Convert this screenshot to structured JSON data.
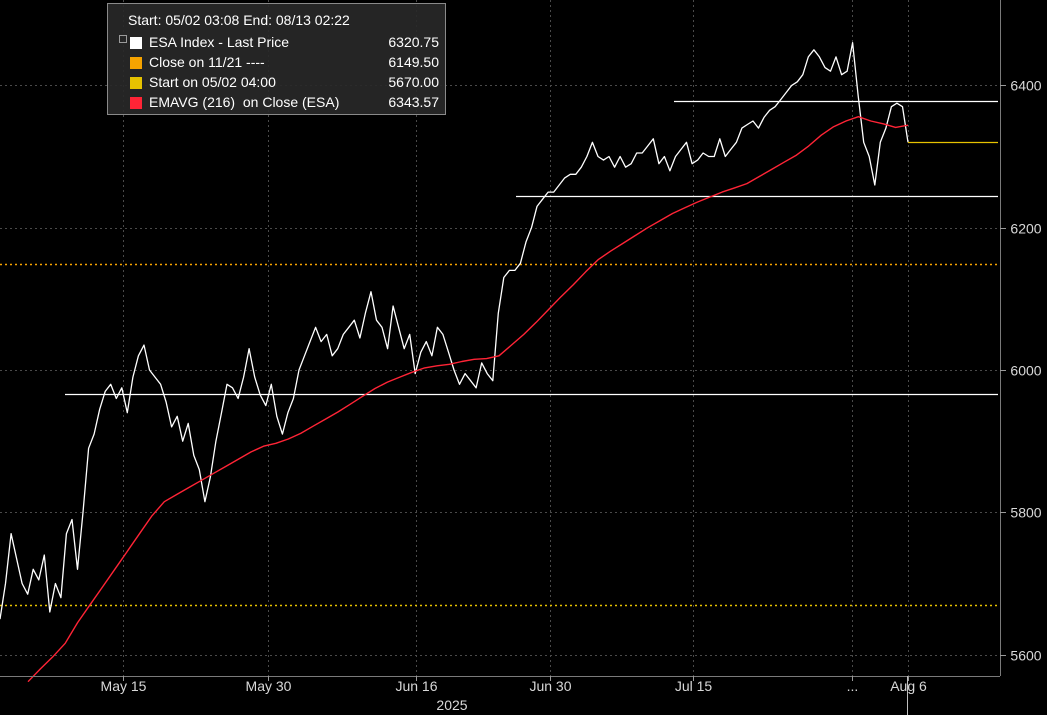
{
  "legend": {
    "header": "Start: 05/02 03:08 End: 08/13 02:22",
    "items": [
      {
        "label": "ESA Index - Last Price",
        "value": "6320.75",
        "color": "#ffffff"
      },
      {
        "label": "Close on 11/21 ----",
        "value": "6149.50",
        "color": "#f5a300"
      },
      {
        "label": "Start on 05/02 04:00",
        "value": "5670.00",
        "color": "#e6c200"
      },
      {
        "label": "EMAVG (216)  on Close (ESA)",
        "value": "6343.57",
        "color": "#ff2436"
      }
    ]
  },
  "chart_data": {
    "type": "line",
    "ylim": [
      5570,
      6520
    ],
    "yticks": [
      "5600",
      "5800",
      "6000",
      "6200",
      "6400"
    ],
    "xtick_labels": [
      "May 15",
      "May 30",
      "Jun 16",
      "Jun 30",
      "Jul 15",
      "...",
      "Aug 6"
    ],
    "xlabel": "2025",
    "grid": true,
    "legend_position": "top-left",
    "reference_lines": [
      {
        "name": "Close on 11/21",
        "value": 6149.5,
        "color": "#f5a300",
        "style": "dotted"
      },
      {
        "name": "Start on 05/02 04:00",
        "value": 5670.0,
        "color": "#e6c200",
        "style": "dotted"
      }
    ],
    "horizontal_levels": [
      5967,
      6244,
      6378
    ],
    "series": [
      {
        "name": "ESA Index - Last Price",
        "color": "#ffffff",
        "values": [
          5650,
          5700,
          5770,
          5735,
          5700,
          5685,
          5720,
          5705,
          5740,
          5660,
          5700,
          5680,
          5770,
          5790,
          5720,
          5800,
          5890,
          5910,
          5945,
          5970,
          5980,
          5960,
          5975,
          5940,
          5990,
          6020,
          6035,
          6000,
          5990,
          5980,
          5955,
          5920,
          5935,
          5900,
          5925,
          5880,
          5860,
          5815,
          5850,
          5900,
          5940,
          5980,
          5975,
          5960,
          5990,
          6030,
          5990,
          5965,
          5950,
          5980,
          5935,
          5910,
          5940,
          5960,
          6000,
          6020,
          6040,
          6060,
          6040,
          6050,
          6020,
          6030,
          6050,
          6060,
          6070,
          6045,
          6080,
          6110,
          6070,
          6060,
          6030,
          6090,
          6060,
          6030,
          6050,
          5995,
          6025,
          6040,
          6020,
          6060,
          6050,
          6025,
          6000,
          5980,
          5995,
          5985,
          5975,
          6010,
          5995,
          5985,
          6080,
          6130,
          6140,
          6140,
          6150,
          6180,
          6200,
          6230,
          6240,
          6250,
          6250,
          6260,
          6270,
          6275,
          6275,
          6285,
          6300,
          6320,
          6300,
          6295,
          6300,
          6285,
          6300,
          6285,
          6290,
          6305,
          6305,
          6315,
          6325,
          6290,
          6300,
          6280,
          6300,
          6310,
          6320,
          6290,
          6295,
          6305,
          6300,
          6300,
          6325,
          6300,
          6310,
          6320,
          6340,
          6345,
          6350,
          6340,
          6355,
          6365,
          6370,
          6380,
          6390,
          6400,
          6405,
          6415,
          6440,
          6450,
          6440,
          6425,
          6420,
          6440,
          6415,
          6420,
          6460,
          6385,
          6320,
          6300,
          6260,
          6320,
          6340,
          6370,
          6375,
          6370,
          6320
        ]
      },
      {
        "name": "EMAVG (216)  on Close (ESA)",
        "color": "#ff2436",
        "values": [
          5562,
          5580,
          5597,
          5616,
          5645,
          5670,
          5695,
          5720,
          5745,
          5770,
          5795,
          5815,
          5825,
          5835,
          5845,
          5855,
          5865,
          5875,
          5885,
          5893,
          5897,
          5903,
          5911,
          5921,
          5931,
          5941,
          5952,
          5963,
          5974,
          5983,
          5990,
          5997,
          6003,
          6006,
          6008,
          6012,
          6015,
          6016,
          6020,
          6035,
          6050,
          6067,
          6085,
          6103,
          6120,
          6138,
          6155,
          6167,
          6178,
          6189,
          6200,
          6210,
          6220,
          6228,
          6236,
          6243,
          6250,
          6256,
          6262,
          6272,
          6282,
          6292,
          6302,
          6315,
          6330,
          6342,
          6350,
          6356,
          6350,
          6346,
          6341,
          6344
        ]
      }
    ]
  }
}
